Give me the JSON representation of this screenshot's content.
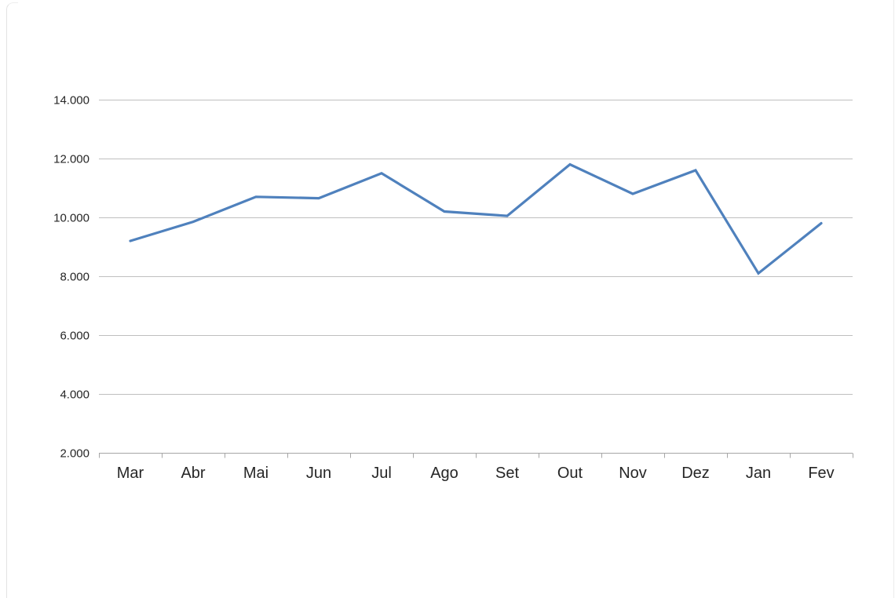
{
  "chart_data": {
    "type": "line",
    "title": "",
    "categories": [
      "Mar",
      "Abr",
      "Mai",
      "Jun",
      "Jul",
      "Ago",
      "Set",
      "Out",
      "Nov",
      "Dez",
      "Jan",
      "Fev"
    ],
    "values": [
      9200,
      9850,
      10700,
      10650,
      11500,
      10200,
      10050,
      11800,
      10800,
      11600,
      8100,
      9800
    ],
    "xlabel": "",
    "ylabel": "",
    "ylim": [
      2000,
      14000
    ],
    "ytick_step": 2000,
    "ytick_labels": [
      "2.000",
      "4.000",
      "6.000",
      "8.000",
      "10.000",
      "12.000",
      "14.000"
    ],
    "grid": "horizontal",
    "legend": "none",
    "colors": {
      "line": "#4F81BD",
      "gridline": "#BFBFBF",
      "axis": "#A6A6A6",
      "label": "#262626"
    }
  }
}
